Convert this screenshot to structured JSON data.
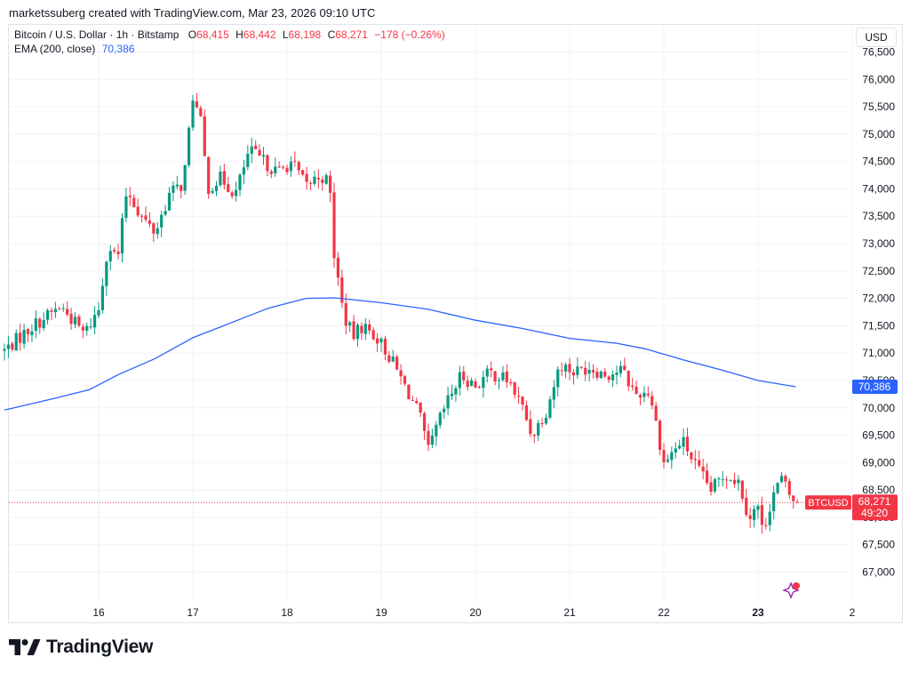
{
  "header": {
    "attribution": "marketssuberg created with TradingView.com, Mar 23, 2026 09:10 UTC"
  },
  "legend": {
    "symbol": "Bitcoin / U.S. Dollar · 1h · Bitstamp",
    "o_label": "O",
    "o_value": "68,415",
    "h_label": "H",
    "h_value": "68,442",
    "l_label": "L",
    "l_value": "68,198",
    "c_label": "C",
    "c_value": "68,271",
    "change": "−178 (−0.26%)",
    "ema_label": "EMA (200, close)",
    "ema_value": "70,386"
  },
  "currency_button": "USD",
  "footer": {
    "brand": "TradingView"
  },
  "colors": {
    "up": "#089981",
    "down": "#f23645",
    "ema": "#2962ff",
    "grid": "#f0f3fa"
  },
  "icons": {
    "logo": "tradingview-logo-icon",
    "ai": "sparkle-icon"
  },
  "chart_data": {
    "type": "candlestick",
    "timeframe": "1h",
    "ylim": [
      66500,
      76800
    ],
    "y_ticks": [
      67000,
      67500,
      68000,
      68500,
      69000,
      69500,
      70000,
      70500,
      71000,
      71500,
      72000,
      72500,
      73000,
      73500,
      74000,
      74500,
      75000,
      75500,
      76000,
      76500
    ],
    "y_tick_labels": [
      "67,000",
      "67,500",
      "68,000",
      "68,500",
      "69,000",
      "69,500",
      "70,000",
      "70,500",
      "71,000",
      "71,500",
      "72,000",
      "72,500",
      "73,000",
      "73,500",
      "74,000",
      "74,500",
      "75,000",
      "75,500",
      "76,000",
      "76,500"
    ],
    "x_ticks": [
      {
        "day": 16,
        "label": "16"
      },
      {
        "day": 17,
        "label": "17"
      },
      {
        "day": 18,
        "label": "18"
      },
      {
        "day": 19,
        "label": "19"
      },
      {
        "day": 20,
        "label": "20"
      },
      {
        "day": 21,
        "label": "21"
      },
      {
        "day": 22,
        "label": "22"
      },
      {
        "day": 23,
        "label": "23",
        "bold": true
      },
      {
        "day": 24,
        "label": "2"
      }
    ],
    "x_range_days": [
      15.0,
      24.0
    ],
    "price_path": [
      [
        15.0,
        71050
      ],
      [
        15.3,
        71500
      ],
      [
        15.6,
        71850
      ],
      [
        15.85,
        71350
      ],
      [
        16.0,
        71800
      ],
      [
        16.1,
        73000
      ],
      [
        16.2,
        72700
      ],
      [
        16.3,
        74000
      ],
      [
        16.45,
        73500
      ],
      [
        16.6,
        73200
      ],
      [
        16.75,
        73900
      ],
      [
        16.9,
        74100
      ],
      [
        17.0,
        75700
      ],
      [
        17.1,
        75100
      ],
      [
        17.15,
        74000
      ],
      [
        17.3,
        74200
      ],
      [
        17.45,
        73900
      ],
      [
        17.6,
        74700
      ],
      [
        17.75,
        74500
      ],
      [
        17.9,
        74300
      ],
      [
        18.05,
        74500
      ],
      [
        18.2,
        74050
      ],
      [
        18.35,
        74250
      ],
      [
        18.45,
        74100
      ],
      [
        18.5,
        72800
      ],
      [
        18.6,
        71700
      ],
      [
        18.7,
        71300
      ],
      [
        18.8,
        71500
      ],
      [
        18.95,
        71300
      ],
      [
        19.1,
        70900
      ],
      [
        19.25,
        70400
      ],
      [
        19.4,
        69900
      ],
      [
        19.5,
        69200
      ],
      [
        19.6,
        69700
      ],
      [
        19.7,
        70100
      ],
      [
        19.85,
        70600
      ],
      [
        20.0,
        70400
      ],
      [
        20.15,
        70650
      ],
      [
        20.35,
        70500
      ],
      [
        20.5,
        70000
      ],
      [
        20.6,
        69500
      ],
      [
        20.75,
        69950
      ],
      [
        20.9,
        70800
      ],
      [
        21.05,
        70650
      ],
      [
        21.2,
        70750
      ],
      [
        21.4,
        70600
      ],
      [
        21.55,
        70700
      ],
      [
        21.7,
        70250
      ],
      [
        21.85,
        70300
      ],
      [
        22.0,
        69000
      ],
      [
        22.1,
        69200
      ],
      [
        22.2,
        69400
      ],
      [
        22.35,
        68900
      ],
      [
        22.5,
        68500
      ],
      [
        22.65,
        68800
      ],
      [
        22.8,
        68650
      ],
      [
        22.9,
        68000
      ],
      [
        23.0,
        68200
      ],
      [
        23.05,
        67700
      ],
      [
        23.15,
        68400
      ],
      [
        23.25,
        68700
      ],
      [
        23.35,
        68350
      ],
      [
        23.4,
        68271
      ]
    ],
    "ema_path": [
      [
        15.0,
        69960
      ],
      [
        15.5,
        70160
      ],
      [
        15.9,
        70330
      ],
      [
        16.2,
        70600
      ],
      [
        16.6,
        70900
      ],
      [
        17.0,
        71280
      ],
      [
        17.4,
        71550
      ],
      [
        17.8,
        71820
      ],
      [
        18.2,
        72000
      ],
      [
        18.5,
        72010
      ],
      [
        19.0,
        71920
      ],
      [
        19.5,
        71800
      ],
      [
        20.0,
        71600
      ],
      [
        20.5,
        71450
      ],
      [
        21.0,
        71270
      ],
      [
        21.5,
        71180
      ],
      [
        21.8,
        71080
      ],
      [
        22.2,
        70880
      ],
      [
        22.6,
        70700
      ],
      [
        23.0,
        70500
      ],
      [
        23.4,
        70386
      ]
    ],
    "last_price": 68271,
    "last_price_label": "68,271",
    "countdown": "49:20",
    "symbol_tag": "BTCUSD",
    "ema_tag": "70,386"
  }
}
